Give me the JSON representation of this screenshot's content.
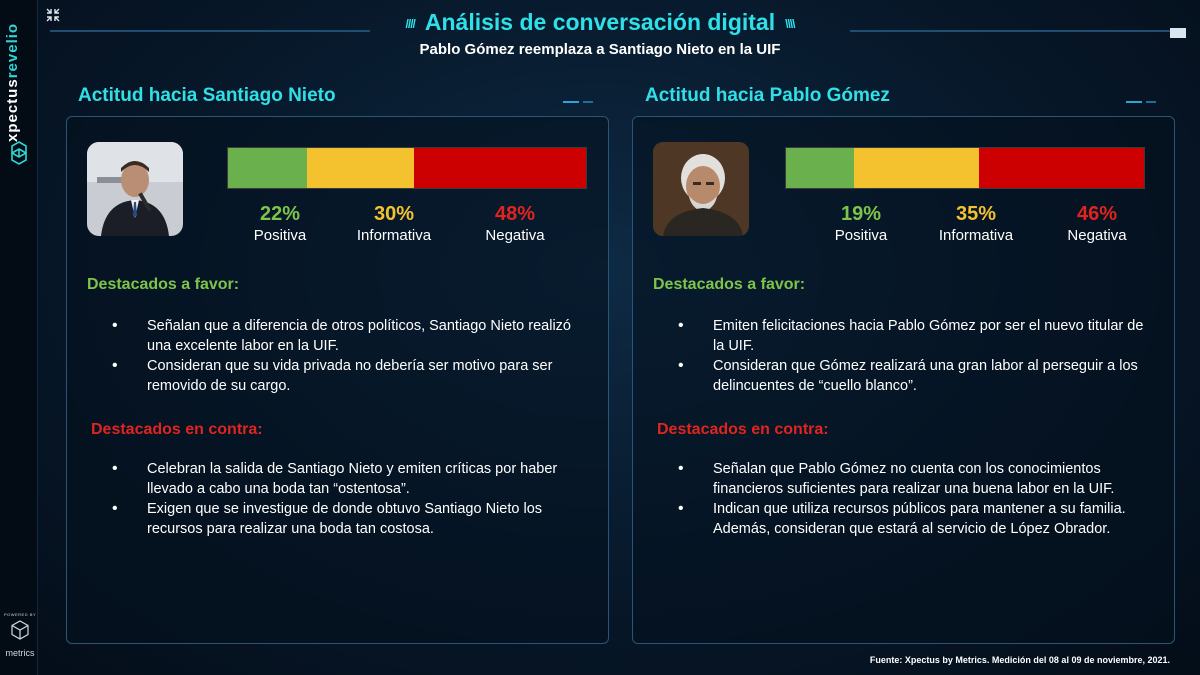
{
  "brand": {
    "vertical_part1": "xpectus",
    "vertical_part2": "revelio",
    "powered_by": "POWERED BY",
    "metrics": "metrics"
  },
  "header": {
    "title": "Análisis de conversación digital",
    "subtitle": "Pablo Gómez reemplaza a Santiago Nieto en la UIF"
  },
  "colors": {
    "positive": "#6ab04c",
    "informative": "#f4c12f",
    "negative": "#cc0000",
    "accent": "#2fe0e8"
  },
  "panels": [
    {
      "title": "Actitud hacia Santiago Nieto",
      "stats": [
        {
          "pct": "22%",
          "label": "Positiva",
          "value": 22
        },
        {
          "pct": "30%",
          "label": "Informativa",
          "value": 30
        },
        {
          "pct": "48%",
          "label": "Negativa",
          "value": 48
        }
      ],
      "favor_title": "Destacados a favor:",
      "favor": [
        "Señalan que a diferencia de otros políticos, Santiago Nieto realizó una excelente labor en la UIF.",
        "Consideran que su vida privada no debería ser motivo para ser removido de su cargo."
      ],
      "contra_title": "Destacados en contra:",
      "contra": [
        "Celebran la salida de Santiago Nieto y emiten críticas por haber llevado a cabo una boda tan “ostentosa”.",
        "Exigen que se investigue de donde obtuvo Santiago Nieto los recursos para realizar una boda tan costosa."
      ]
    },
    {
      "title": "Actitud hacia Pablo Gómez",
      "stats": [
        {
          "pct": "19%",
          "label": "Positiva",
          "value": 19
        },
        {
          "pct": "35%",
          "label": "Informativa",
          "value": 35
        },
        {
          "pct": "46%",
          "label": "Negativa",
          "value": 46
        }
      ],
      "favor_title": "Destacados a favor:",
      "favor": [
        "Emiten felicitaciones hacia Pablo Gómez por ser el nuevo titular de la UIF.",
        "Consideran que Gómez realizará una gran labor al perseguir a los delincuentes de “cuello blanco”."
      ],
      "contra_title": "Destacados en contra:",
      "contra": [
        "Señalan que Pablo Gómez no cuenta con los conocimientos financieros suficientes para realizar una buena labor en la UIF.",
        "Indican que utiliza recursos públicos para mantener a su familia. Además, consideran que estará al servicio de López Obrador."
      ]
    }
  ],
  "footer": "Fuente: Xpectus by Metrics. Medición del 08 al 09 de noviembre, 2021."
}
